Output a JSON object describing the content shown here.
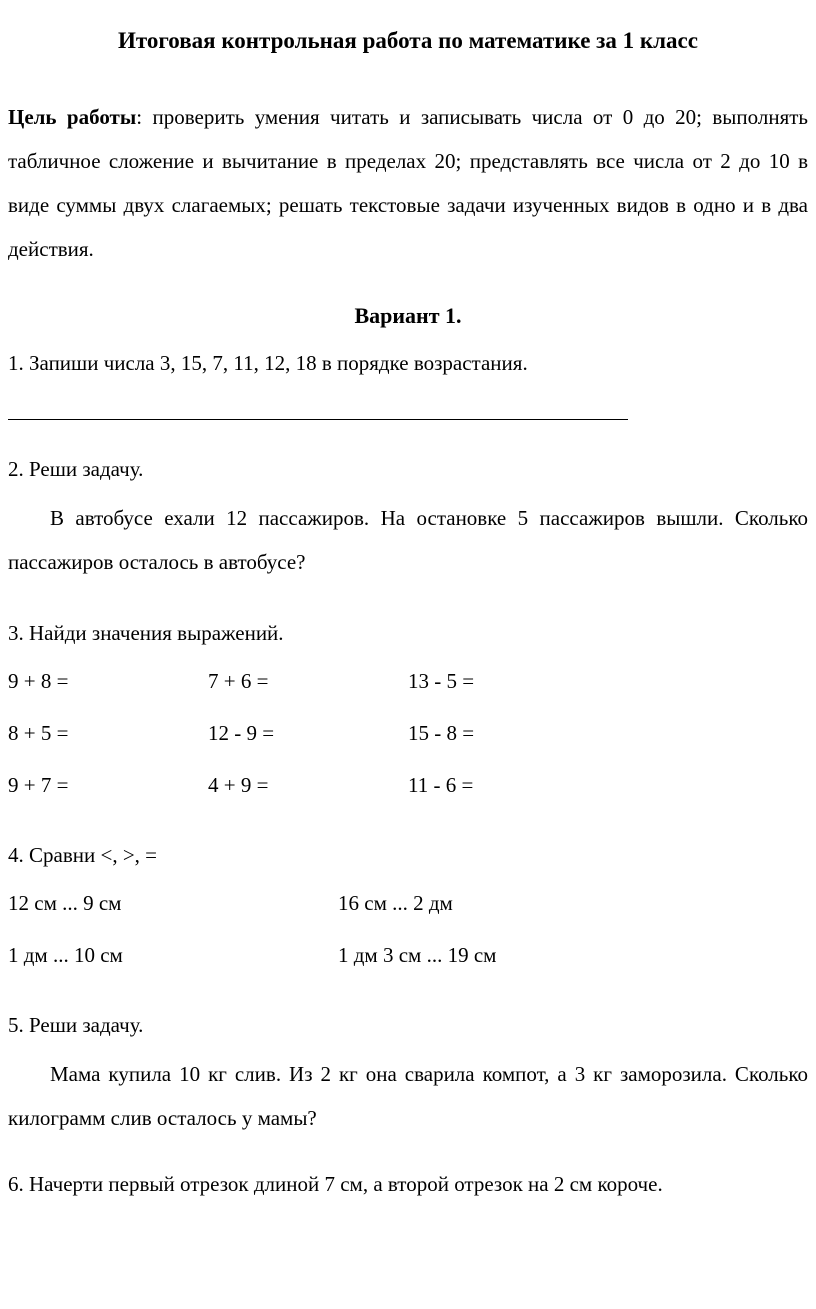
{
  "title": "Итоговая контрольная работа по математике за 1 класс",
  "goal_label": "Цель работы",
  "goal_text": ": проверить умения читать и записывать числа от 0 до 20; выполнять табличное сложение и вычитание в пределах 20; представлять все числа от 2 до 10 в виде суммы двух слагаемых; решать текстовые задачи изученных видов в одно  и в два действия.",
  "variant": "Вариант 1.",
  "task1": {
    "prompt": "1. Запиши числа 3, 15, 7, 11, 12, 18 в порядке возрастания."
  },
  "task2": {
    "prompt": "2. Реши задачу.",
    "body": "В автобусе ехали 12 пассажиров. На остановке 5 пассажиров вышли. Сколько пассажиров осталось в автобусе?"
  },
  "task3": {
    "prompt": "3. Найди значения выражений.",
    "rows": [
      [
        "9 + 8 =",
        "7 + 6 =",
        "13 - 5 ="
      ],
      [
        "8 + 5 =",
        "12 - 9 =",
        "15 - 8 ="
      ],
      [
        "9 + 7 =",
        "4 + 9 =",
        "11 - 6 ="
      ]
    ]
  },
  "task4": {
    "prompt": "4. Сравни <,  >, =",
    "rows": [
      [
        "12 см ... 9 см",
        "16 см ... 2 дм"
      ],
      [
        "1 дм ... 10 см",
        "1 дм 3 см ... 19 см"
      ]
    ]
  },
  "task5": {
    "prompt": "5. Реши задачу.",
    "body": "Мама купила 10 кг слив. Из 2 кг она сварила компот, а  3 кг заморозила. Сколько килограмм слив осталось у мамы?"
  },
  "task6": {
    "prompt": "6. Начерти первый отрезок длиной 7 см, а второй отрезок  на 2 см короче."
  }
}
